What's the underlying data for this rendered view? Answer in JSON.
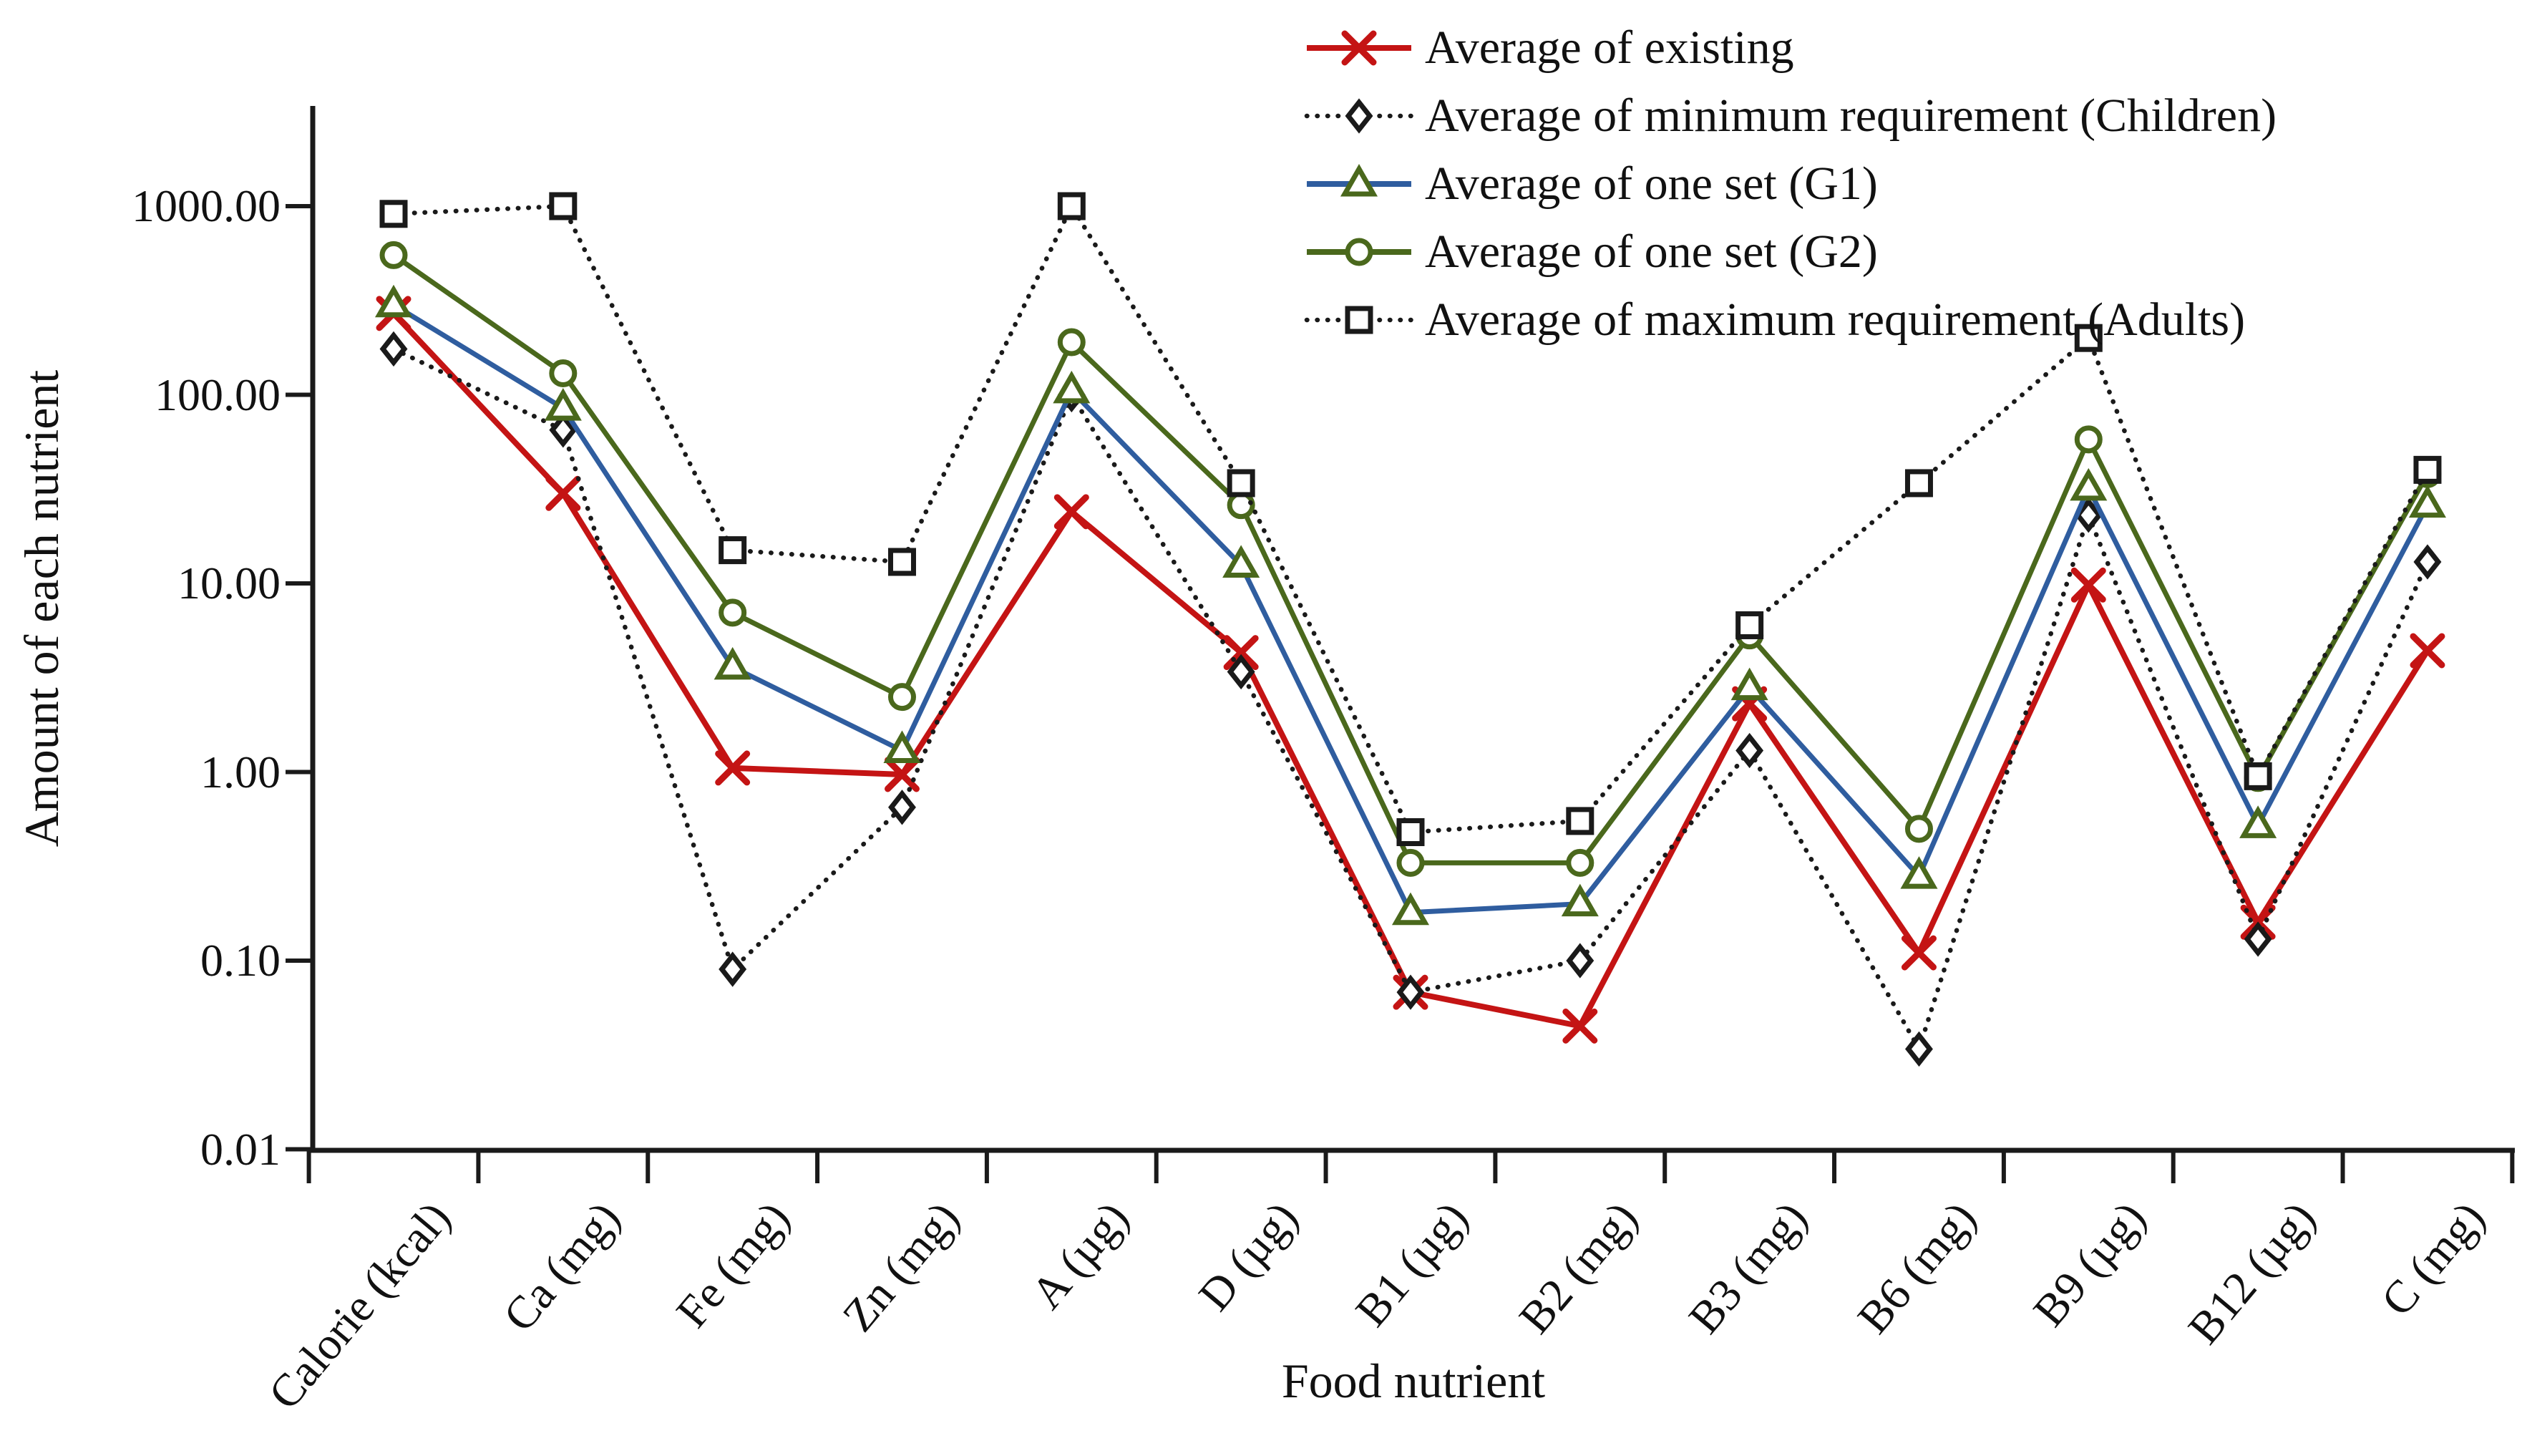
{
  "figure": {
    "background": "#ffffff",
    "axis_color": "#1a1a1a"
  },
  "chart_data": {
    "type": "line",
    "title": "",
    "xlabel": "Food nutrient",
    "ylabel": "Amount of each nutrient",
    "y_scale": "log",
    "grid": false,
    "legend_position": "top-right",
    "y_ticks": [
      "1000.00",
      "100.00",
      "10.00",
      "1.00",
      "0.10",
      "0.01"
    ],
    "y_tick_values": [
      1000,
      100,
      10,
      1,
      0.1,
      0.01
    ],
    "ylim": [
      0.01,
      4000
    ],
    "categories": [
      "Calorie (kcal)",
      "Ca (mg)",
      "Fe (mg)",
      "Zn (mg)",
      "A (µg)",
      "D (µg)",
      "B1 (µg)",
      "B2 (mg)",
      "B3 (mg)",
      "B6 (mg)",
      "B9 (µg)",
      "B12 (µg)",
      "C (mg)"
    ],
    "series": [
      {
        "name": "Average of existing",
        "line": "solid",
        "line_color": "#c41414",
        "marker": "x",
        "marker_color": "#c41414",
        "values": [
          270,
          30,
          1.05,
          0.97,
          24,
          4.3,
          0.068,
          0.045,
          2.3,
          0.11,
          9.8,
          0.16,
          4.4
        ]
      },
      {
        "name": "Average of minimum requirement (Children)",
        "line": "dotted",
        "line_color": "#1a1a1a",
        "marker": "diamond",
        "marker_color": "#1a1a1a",
        "values": [
          175,
          65,
          0.09,
          0.65,
          100,
          3.4,
          0.068,
          0.1,
          1.3,
          0.034,
          23,
          0.13,
          13
        ]
      },
      {
        "name": "Average of one set (G1)",
        "line": "solid",
        "line_color": "#2f5d9f",
        "marker": "triangle",
        "marker_color": "#4a681c",
        "values": [
          300,
          85,
          3.6,
          1.3,
          105,
          12.5,
          0.18,
          0.2,
          2.8,
          0.28,
          32,
          0.52,
          26
        ]
      },
      {
        "name": "Average of one set (G2)",
        "line": "solid",
        "line_color": "#4a681c",
        "marker": "circle",
        "marker_color": "#4a681c",
        "values": [
          550,
          130,
          7.0,
          2.5,
          190,
          26,
          0.33,
          0.33,
          5.3,
          0.5,
          58,
          0.93,
          38
        ]
      },
      {
        "name": "Average of maximum requirement (Adults)",
        "line": "dotted",
        "line_color": "#1a1a1a",
        "marker": "square",
        "marker_color": "#1a1a1a",
        "values": [
          910,
          1000,
          15,
          13,
          1000,
          34,
          0.48,
          0.55,
          6.0,
          34,
          200,
          0.95,
          40
        ]
      }
    ]
  }
}
